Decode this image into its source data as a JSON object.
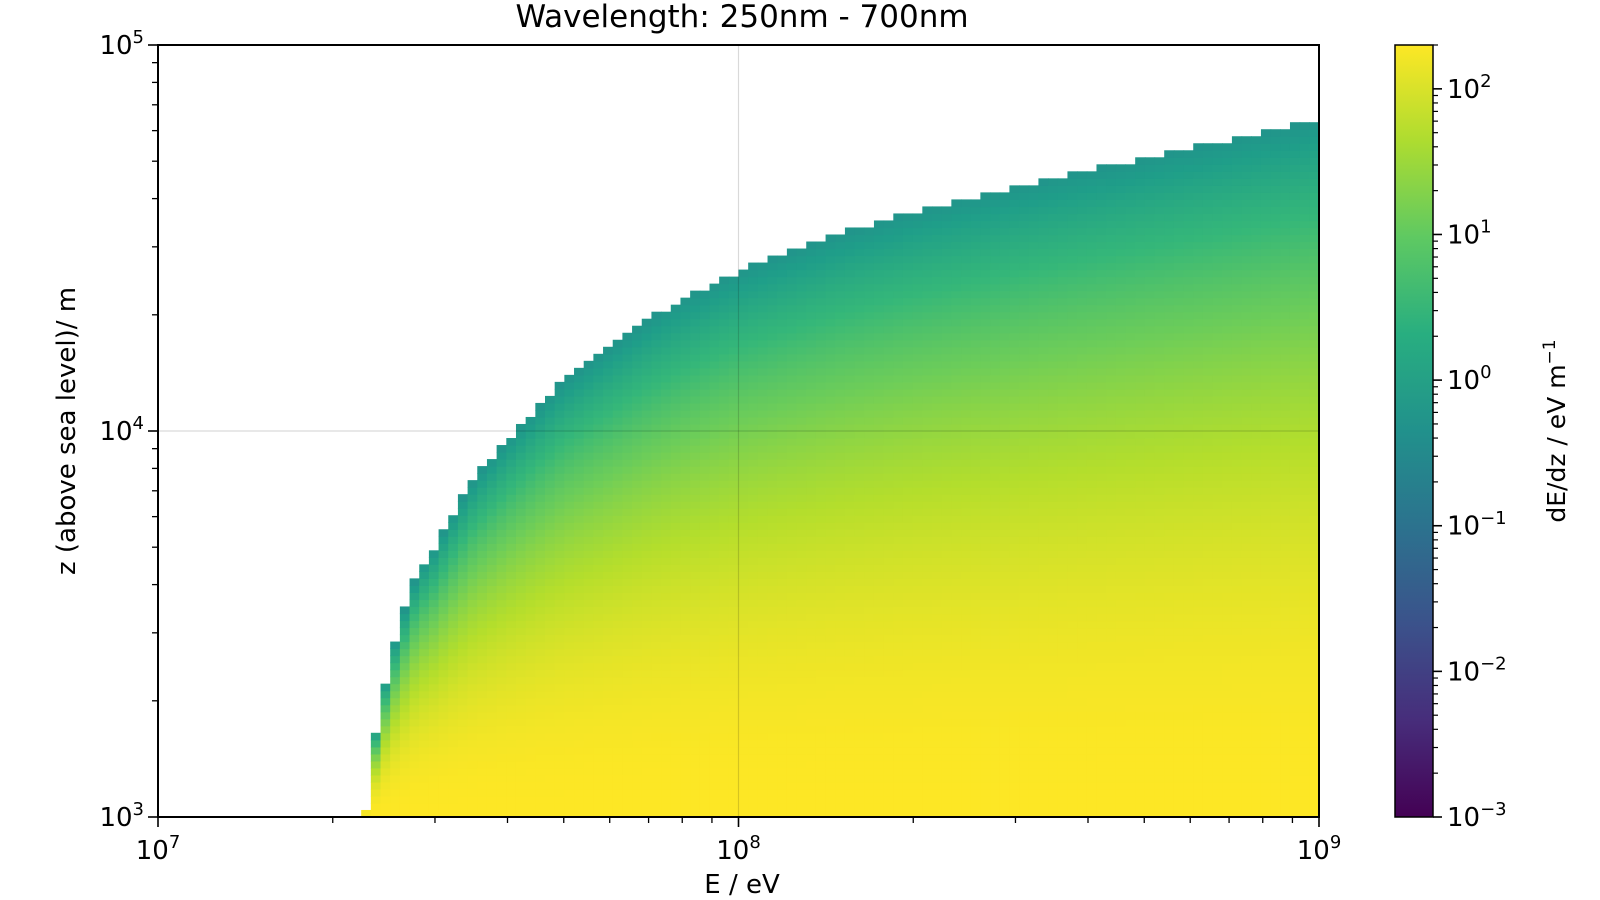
{
  "chart_data": {
    "type": "heatmap",
    "title": "Wavelength: 250nm - 700nm",
    "xlabel": "E / eV",
    "ylabel": "z (above sea level)/ m",
    "x_scale": "log",
    "y_scale": "log",
    "xlim": [
      10000000,
      1000000000
    ],
    "ylim": [
      1000,
      100000
    ],
    "x_ticks": [
      {
        "base": "10",
        "exp": "7"
      },
      {
        "base": "10",
        "exp": "8"
      },
      {
        "base": "10",
        "exp": "9"
      }
    ],
    "y_ticks": [
      {
        "base": "10",
        "exp": "3"
      },
      {
        "base": "10",
        "exp": "4"
      },
      {
        "base": "10",
        "exp": "5"
      }
    ],
    "grid": true,
    "colorbar": {
      "label_main": "dE/dz / eV m",
      "label_exp": "−1",
      "scale": "log",
      "range": [
        0.001,
        200
      ],
      "colormap": "viridis",
      "ticks": [
        {
          "value": 100,
          "base": "10",
          "exp": "2"
        },
        {
          "value": 10,
          "base": "10",
          "exp": "1"
        },
        {
          "value": 1,
          "base": "10",
          "exp": "0"
        },
        {
          "value": 0.1,
          "base": "10",
          "exp": "−1"
        },
        {
          "value": 0.01,
          "base": "10",
          "exp": "−2"
        },
        {
          "value": 0.001,
          "base": "10",
          "exp": "−3"
        }
      ]
    },
    "boundary": {
      "description_values": "maximum altitude (m) reached vs energy (eV)",
      "points": [
        [
          22800000,
          1000
        ],
        [
          23000000,
          1300
        ],
        [
          24000000,
          1850
        ],
        [
          25000000,
          2500
        ],
        [
          26000000,
          3100
        ],
        [
          27000000,
          3700
        ],
        [
          28000000,
          4300
        ],
        [
          30000000,
          5000
        ],
        [
          32000000,
          6000
        ],
        [
          35000000,
          7500
        ],
        [
          40000000,
          9500
        ],
        [
          45000000,
          11500
        ],
        [
          50000000,
          13500
        ],
        [
          60000000,
          16500
        ],
        [
          70000000,
          19500
        ],
        [
          80000000,
          22000
        ],
        [
          100000000,
          26000
        ],
        [
          150000000,
          32500
        ],
        [
          200000000,
          37000
        ],
        [
          300000000,
          43000
        ],
        [
          500000000,
          51000
        ],
        [
          1000000000,
          64000
        ]
      ]
    },
    "value_model": {
      "surface_value": 200,
      "edge_value": 1
    }
  }
}
